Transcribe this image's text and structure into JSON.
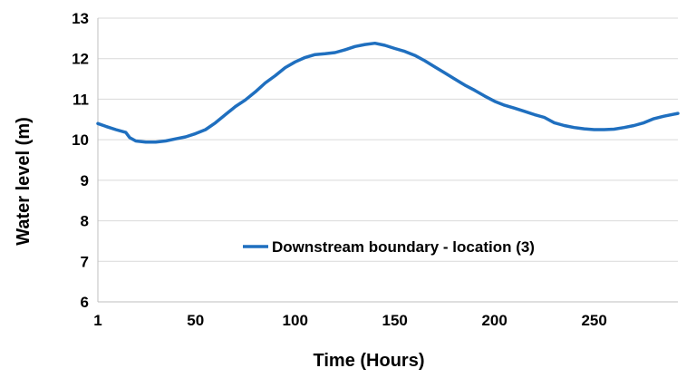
{
  "chart_data": {
    "type": "line",
    "title": "",
    "xlabel": "Time (Hours)",
    "ylabel": "Water level (m)",
    "xlim": [
      1,
      292
    ],
    "ylim": [
      6,
      13
    ],
    "x_ticks": [
      1,
      50,
      100,
      150,
      200,
      250
    ],
    "y_ticks": [
      6,
      7,
      8,
      9,
      10,
      11,
      12,
      13
    ],
    "grid": "horizontal",
    "legend_position": "center-bottom",
    "series": [
      {
        "name": "Downstream boundary - location (3)",
        "color": "#1f6fbf",
        "points": [
          [
            1,
            10.4
          ],
          [
            5,
            10.33
          ],
          [
            10,
            10.25
          ],
          [
            15,
            10.18
          ],
          [
            17,
            10.05
          ],
          [
            20,
            9.97
          ],
          [
            25,
            9.94
          ],
          [
            30,
            9.94
          ],
          [
            35,
            9.97
          ],
          [
            40,
            10.02
          ],
          [
            45,
            10.07
          ],
          [
            50,
            10.15
          ],
          [
            55,
            10.25
          ],
          [
            60,
            10.42
          ],
          [
            65,
            10.62
          ],
          [
            70,
            10.82
          ],
          [
            75,
            10.98
          ],
          [
            80,
            11.18
          ],
          [
            85,
            11.4
          ],
          [
            90,
            11.58
          ],
          [
            95,
            11.78
          ],
          [
            100,
            11.92
          ],
          [
            105,
            12.03
          ],
          [
            110,
            12.1
          ],
          [
            115,
            12.12
          ],
          [
            120,
            12.15
          ],
          [
            125,
            12.22
          ],
          [
            130,
            12.3
          ],
          [
            135,
            12.35
          ],
          [
            140,
            12.38
          ],
          [
            145,
            12.33
          ],
          [
            150,
            12.25
          ],
          [
            155,
            12.18
          ],
          [
            160,
            12.08
          ],
          [
            165,
            11.95
          ],
          [
            170,
            11.8
          ],
          [
            175,
            11.65
          ],
          [
            180,
            11.5
          ],
          [
            185,
            11.35
          ],
          [
            190,
            11.22
          ],
          [
            195,
            11.08
          ],
          [
            200,
            10.95
          ],
          [
            205,
            10.85
          ],
          [
            210,
            10.78
          ],
          [
            215,
            10.7
          ],
          [
            220,
            10.62
          ],
          [
            225,
            10.55
          ],
          [
            230,
            10.42
          ],
          [
            235,
            10.35
          ],
          [
            240,
            10.3
          ],
          [
            245,
            10.27
          ],
          [
            250,
            10.25
          ],
          [
            255,
            10.25
          ],
          [
            260,
            10.26
          ],
          [
            265,
            10.3
          ],
          [
            270,
            10.35
          ],
          [
            275,
            10.42
          ],
          [
            280,
            10.52
          ],
          [
            285,
            10.58
          ],
          [
            292,
            10.65
          ]
        ]
      }
    ]
  }
}
